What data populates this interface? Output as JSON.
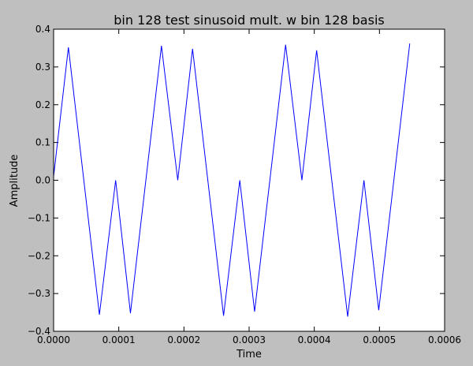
{
  "chart_data": {
    "type": "line",
    "title": "bin 128 test sinusoid mult. w bin 128 basis",
    "xlabel": "Time",
    "ylabel": "Amplitude",
    "xlim": [
      0,
      0.0006
    ],
    "ylim": [
      -0.4,
      0.4
    ],
    "x_ticks": [
      0,
      0.0001,
      0.0002,
      0.0003,
      0.0004,
      0.0005,
      0.0006
    ],
    "x_tick_labels": [
      "0.0000",
      "0.0001",
      "0.0002",
      "0.0003",
      "0.0004",
      "0.0005",
      "0.0006"
    ],
    "y_ticks": [
      -0.4,
      -0.3,
      -0.2,
      -0.1,
      0.0,
      0.1,
      0.2,
      0.3,
      0.4
    ],
    "y_tick_labels": [
      "−0.4",
      "−0.3",
      "−0.2",
      "−0.1",
      "0.0",
      "0.1",
      "0.2",
      "0.3",
      "0.4"
    ],
    "grid": false,
    "line_color": "#0000ff",
    "background_color": "#ffffff",
    "figure_color": "#bfbfbf",
    "series": [
      {
        "x": [
          0.0,
          2.27e-05,
          7.03e-05,
          9.52e-05,
          0.0001179,
          0.0001655,
          0.0001905,
          0.0002132,
          0.0002608,
          0.0002857,
          0.0003084,
          0.000356,
          0.000381,
          0.0004036,
          0.0004512,
          0.0004762,
          0.0004989,
          0.0005465
        ],
        "y": [
          0.01,
          0.352,
          -0.356,
          0.0,
          -0.352,
          0.356,
          0.0,
          0.348,
          -0.359,
          0.0,
          -0.348,
          0.359,
          0.0,
          0.344,
          -0.361,
          0.0,
          -0.344,
          0.362
        ]
      }
    ]
  }
}
